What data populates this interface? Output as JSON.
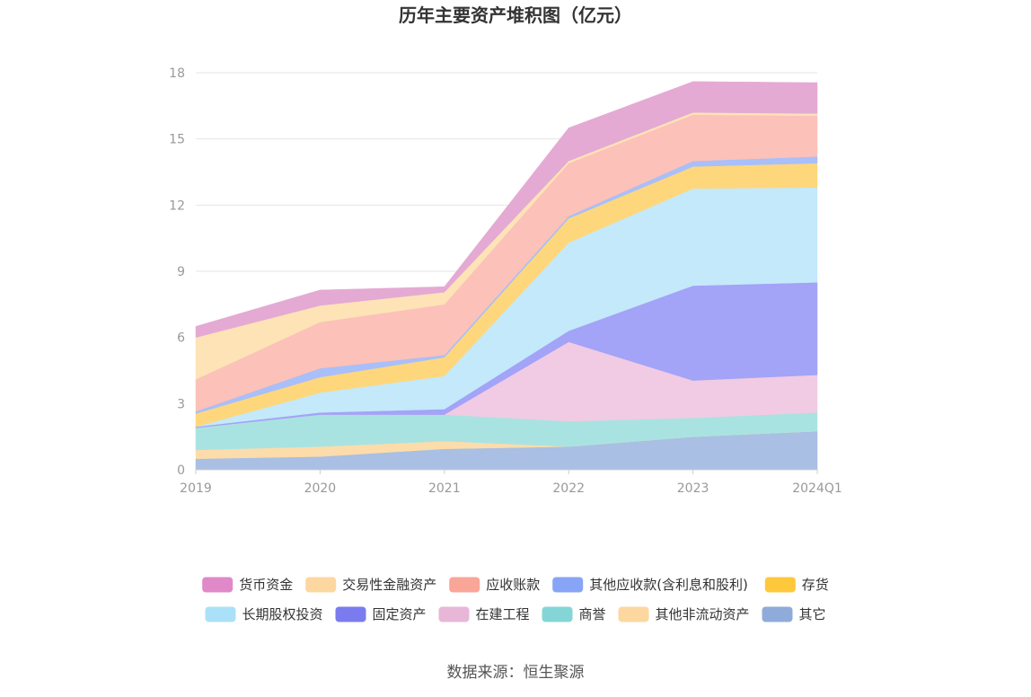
{
  "chart_data": {
    "type": "area",
    "stacked": true,
    "title": "历年主要资产堆积图（亿元）",
    "source": "数据来源：恒生聚源",
    "categories": [
      "2019",
      "2020",
      "2021",
      "2022",
      "2023",
      "2024Q1"
    ],
    "ylim": [
      0,
      18
    ],
    "yticks": [
      "0",
      "3",
      "6",
      "9",
      "12",
      "15",
      "18"
    ],
    "grid": true,
    "legend_position": "bottom",
    "series": [
      {
        "name": "其它",
        "color": "#a9bfe3",
        "values": [
          0.5,
          0.6,
          0.95,
          1.05,
          1.5,
          1.75
        ]
      },
      {
        "name": "其他非流动资产",
        "color": "#fcdcaa",
        "values": [
          0.4,
          0.45,
          0.35,
          0.0,
          0.0,
          0.0
        ]
      },
      {
        "name": "商誉",
        "color": "#a9e3e1",
        "values": [
          1.0,
          1.45,
          1.2,
          1.15,
          0.85,
          0.85
        ]
      },
      {
        "name": "在建工程",
        "color": "#f0cbe3",
        "values": [
          0.0,
          0.0,
          0.0,
          3.6,
          1.7,
          1.7
        ]
      },
      {
        "name": "固定资产",
        "color": "#a3a3f7",
        "values": [
          0.05,
          0.1,
          0.25,
          0.5,
          4.3,
          4.2
        ]
      },
      {
        "name": "长期股权投资",
        "color": "#c3e9fa",
        "values": [
          0.0,
          0.9,
          1.5,
          4.0,
          4.4,
          4.3
        ]
      },
      {
        "name": "存货",
        "color": "#fed77c",
        "values": [
          0.6,
          0.7,
          0.85,
          1.1,
          1.0,
          1.1
        ]
      },
      {
        "name": "其他应收款(含利息和股利)",
        "color": "#a8bff9",
        "values": [
          0.1,
          0.4,
          0.1,
          0.1,
          0.25,
          0.3
        ]
      },
      {
        "name": "应收账款",
        "color": "#fcc1b8",
        "values": [
          1.45,
          2.1,
          2.3,
          2.4,
          2.1,
          1.85
        ]
      },
      {
        "name": "交易性金融资产",
        "color": "#fde3b6",
        "values": [
          1.9,
          0.75,
          0.55,
          0.1,
          0.1,
          0.1
        ]
      },
      {
        "name": "货币资金",
        "color": "#e4aad3",
        "values": [
          0.5,
          0.7,
          0.25,
          1.5,
          1.4,
          1.4
        ]
      }
    ],
    "legend": [
      {
        "name": "货币资金",
        "color": "#e089c8"
      },
      {
        "name": "交易性金融资产",
        "color": "#fdd7a0"
      },
      {
        "name": "应收账款",
        "color": "#f9a698"
      },
      {
        "name": "其他应收款(含利息和股利)",
        "color": "#87a4f6"
      },
      {
        "name": "存货",
        "color": "#fec83c"
      },
      {
        "name": "长期股权投资",
        "color": "#abe1f8"
      },
      {
        "name": "固定资产",
        "color": "#7b7bf0"
      },
      {
        "name": "在建工程",
        "color": "#e8b7d8"
      },
      {
        "name": "商誉",
        "color": "#84d6d6"
      },
      {
        "name": "其他非流动资产",
        "color": "#fdd7a0"
      },
      {
        "name": "其它",
        "color": "#8fabda"
      }
    ]
  }
}
